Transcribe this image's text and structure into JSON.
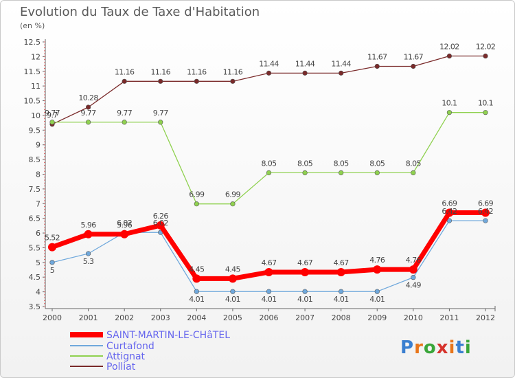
{
  "title": "Evolution du Taux de Taxe d'Habitation",
  "subtitle": "(en %)",
  "logo": {
    "letters": [
      "P",
      "r",
      "o",
      "x",
      "i",
      "t",
      "i"
    ],
    "colors": [
      "#3a7fd0",
      "#e8751a",
      "#3aa63a",
      "#d6322b",
      "#e8751a",
      "#3a7fd0",
      "#3aa63a"
    ]
  },
  "chart_data": {
    "type": "line",
    "x": [
      "2000",
      "2001",
      "2002",
      "2003",
      "2004",
      "2005",
      "2006",
      "2007",
      "2008",
      "2009",
      "2010",
      "2011",
      "2012"
    ],
    "ylim": [
      3.5,
      12.5
    ],
    "ytick_labels": [
      "3.5",
      "4",
      "4.5",
      "5",
      "5.5",
      "6",
      "6.5",
      "7",
      "7.5",
      "8",
      "8.5",
      "9",
      "9.5",
      "10",
      "10.5",
      "11",
      "11.5",
      "12",
      "12.5"
    ],
    "grid": false,
    "legend_position": "bottom-left",
    "series": [
      {
        "name": "SAINT-MARTIN-LE-CHâTEL",
        "color": "#ff0000",
        "values": [
          5.52,
          5.96,
          5.96,
          6.26,
          4.45,
          4.45,
          4.67,
          4.67,
          4.67,
          4.76,
          4.76,
          6.69,
          6.69
        ],
        "labels": [
          "5.52",
          "5.96",
          "5.96",
          "6.26",
          "4.45",
          "4.45",
          "4.67",
          "4.67",
          "4.67",
          "4.76",
          "4.76",
          "6.69",
          "6.69"
        ]
      },
      {
        "name": "Curtafond",
        "color": "#6fa8dc",
        "values": [
          5,
          5.3,
          6.02,
          6.02,
          4.01,
          4.01,
          4.01,
          4.01,
          4.01,
          4.01,
          4.49,
          6.42,
          6.42
        ],
        "labels": [
          "5",
          "5.3",
          "6.02",
          "6.02",
          "4.01",
          "4.01",
          "4.01",
          "4.01",
          "4.01",
          "4.01",
          "4.49",
          "6.42",
          "6.42"
        ]
      },
      {
        "name": "Attignat",
        "color": "#8fd14f",
        "values": [
          9.77,
          9.77,
          9.77,
          9.77,
          6.99,
          6.99,
          8.05,
          8.05,
          8.05,
          8.05,
          8.05,
          10.1,
          10.1
        ],
        "labels": [
          "9.77",
          "9.77",
          "9.77",
          "9.77",
          "6.99",
          "6.99",
          "8.05",
          "8.05",
          "8.05",
          "8.05",
          "8.05",
          "10.1",
          "10.1"
        ]
      },
      {
        "name": "Polliat",
        "color": "#7a2a2a",
        "values": [
          9.7,
          10.28,
          11.16,
          11.16,
          11.16,
          11.16,
          11.44,
          11.44,
          11.44,
          11.67,
          11.67,
          12.02,
          12.02
        ],
        "labels": [
          "9.7",
          "10.28",
          "11.16",
          "11.16",
          "11.16",
          "11.16",
          "11.44",
          "11.44",
          "11.44",
          "11.67",
          "11.67",
          "12.02",
          "12.02"
        ]
      }
    ]
  }
}
